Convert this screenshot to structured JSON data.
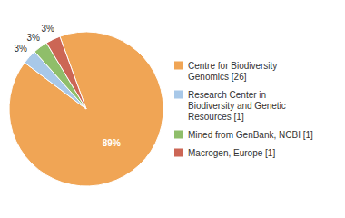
{
  "chart_data": {
    "type": "pie",
    "categories": [
      "Centre for Biodiversity\nGenomics [26]",
      "Research Center in\nBiodiversity and Genetic\nResources [1]",
      "Mined from GenBank, NCBI [1]",
      "Macrogen, Europe [1]"
    ],
    "values": [
      89,
      3,
      3,
      3
    ],
    "value_labels": [
      "89%",
      "3%",
      "3%",
      "3%"
    ],
    "colors": [
      "#f0a555",
      "#a8c8e8",
      "#8fbe6a",
      "#cc6655"
    ],
    "data_labels": true,
    "legend": "right"
  }
}
